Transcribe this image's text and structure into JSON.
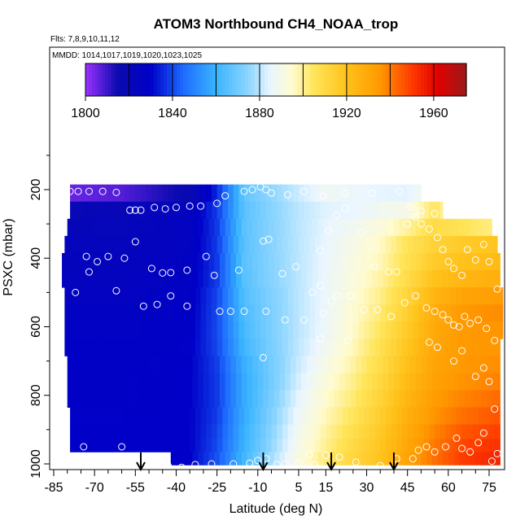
{
  "chart_data": {
    "type": "heatmap",
    "title": "ATOM3 Northbound CH4_NOAA_trop",
    "flights_label": "Flts: 7,8,9,10,11,12",
    "mmdd_label": "MMDD: 1014,1017,1019,1020,1023,1025",
    "xlabel": "Latitude (deg N)",
    "ylabel": "PSXC (mbar)",
    "xlim": [
      -85,
      85
    ],
    "ylim": [
      1010,
      50
    ],
    "x_ticks": [
      -85,
      -70,
      -55,
      -40,
      -25,
      -10,
      5,
      15,
      30,
      45,
      60,
      75
    ],
    "y_ticks": [
      200,
      400,
      600,
      800,
      1000
    ],
    "colorbar": {
      "min": 1800,
      "max": 1975,
      "ticks": [
        1800,
        1840,
        1880,
        1920,
        1960
      ],
      "stops": [
        {
          "value": 1800,
          "color": "#9b30ff"
        },
        {
          "value": 1815,
          "color": "#0a0ab0"
        },
        {
          "value": 1830,
          "color": "#0000c8"
        },
        {
          "value": 1845,
          "color": "#1e6cff"
        },
        {
          "value": 1860,
          "color": "#3ab4ff"
        },
        {
          "value": 1875,
          "color": "#8ed6ff"
        },
        {
          "value": 1885,
          "color": "#eaf6ff"
        },
        {
          "value": 1895,
          "color": "#fffbd0"
        },
        {
          "value": 1905,
          "color": "#ffe55a"
        },
        {
          "value": 1920,
          "color": "#ffc21a"
        },
        {
          "value": 1935,
          "color": "#ff9a00"
        },
        {
          "value": 1950,
          "color": "#ff3a00"
        },
        {
          "value": 1962,
          "color": "#e00000"
        },
        {
          "value": 1975,
          "color": "#9b1a1a"
        }
      ]
    },
    "pressure_bins": [
      {
        "p": 210,
        "lat_min": -79,
        "lat_max": 50
      },
      {
        "p": 260,
        "lat_min": -79,
        "lat_max": 58
      },
      {
        "p": 310,
        "lat_min": -80,
        "lat_max": 76
      },
      {
        "p": 360,
        "lat_min": -81,
        "lat_max": 78
      },
      {
        "p": 410,
        "lat_min": -82,
        "lat_max": 79
      },
      {
        "p": 460,
        "lat_min": -82,
        "lat_max": 79
      },
      {
        "p": 510,
        "lat_min": -81,
        "lat_max": 80
      },
      {
        "p": 560,
        "lat_min": -81,
        "lat_max": 80
      },
      {
        "p": 610,
        "lat_min": -81,
        "lat_max": 80
      },
      {
        "p": 660,
        "lat_min": -81,
        "lat_max": 79
      },
      {
        "p": 710,
        "lat_min": -80,
        "lat_max": 79
      },
      {
        "p": 760,
        "lat_min": -80,
        "lat_max": 79
      },
      {
        "p": 810,
        "lat_min": -80,
        "lat_max": 79
      },
      {
        "p": 860,
        "lat_min": -79,
        "lat_max": 79
      },
      {
        "p": 910,
        "lat_min": -79,
        "lat_max": 79
      },
      {
        "p": 945,
        "lat_min": -79,
        "lat_max": 79
      },
      {
        "p": 985,
        "lat_min": -42,
        "lat_max": 79
      }
    ],
    "ch4_profile": {
      "lat_knots": [
        -85,
        -60,
        -35,
        -25,
        -15,
        -5,
        5,
        15,
        25,
        35,
        45,
        55,
        65,
        80
      ],
      "by_pressure": [
        {
          "p": 200,
          "ch4": [
            1802,
            1805,
            1815,
            1835,
            1868,
            1875,
            1882,
            1888,
            1886,
            1884,
            1883,
            1890,
            1880,
            1870
          ]
        },
        {
          "p": 260,
          "ch4": [
            1818,
            1820,
            1825,
            1838,
            1866,
            1874,
            1880,
            1884,
            1885,
            1888,
            1890,
            1905,
            1890,
            1870
          ]
        },
        {
          "p": 340,
          "ch4": [
            1822,
            1822,
            1826,
            1838,
            1866,
            1874,
            1880,
            1885,
            1890,
            1895,
            1905,
            1912,
            1915,
            1918
          ]
        },
        {
          "p": 440,
          "ch4": [
            1824,
            1824,
            1827,
            1838,
            1866,
            1874,
            1880,
            1886,
            1892,
            1898,
            1908,
            1918,
            1922,
            1925
          ]
        },
        {
          "p": 540,
          "ch4": [
            1826,
            1826,
            1828,
            1840,
            1864,
            1872,
            1880,
            1886,
            1894,
            1902,
            1914,
            1928,
            1935,
            1938
          ]
        },
        {
          "p": 640,
          "ch4": [
            1828,
            1828,
            1829,
            1840,
            1862,
            1872,
            1880,
            1887,
            1896,
            1906,
            1918,
            1930,
            1935,
            1935
          ]
        },
        {
          "p": 740,
          "ch4": [
            1829,
            1829,
            1830,
            1838,
            1858,
            1870,
            1882,
            1892,
            1900,
            1910,
            1922,
            1932,
            1935,
            1938
          ]
        },
        {
          "p": 840,
          "ch4": [
            1829,
            1829,
            1830,
            1838,
            1858,
            1872,
            1886,
            1896,
            1904,
            1914,
            1926,
            1935,
            1940,
            1945
          ]
        },
        {
          "p": 940,
          "ch4": [
            1830,
            1830,
            1830,
            1840,
            1860,
            1875,
            1890,
            1900,
            1910,
            1918,
            1930,
            1940,
            1948,
            1952
          ]
        },
        {
          "p": 1000,
          "ch4": [
            1830,
            1830,
            1830,
            1842,
            1862,
            1878,
            1892,
            1904,
            1912,
            1920,
            1932,
            1942,
            1950,
            1956
          ]
        }
      ]
    },
    "observations": [
      [
        -79,
        205
      ],
      [
        -76,
        205
      ],
      [
        -72,
        205
      ],
      [
        -67,
        205
      ],
      [
        -62,
        208
      ],
      [
        -57,
        260
      ],
      [
        -55,
        260
      ],
      [
        -53,
        260
      ],
      [
        -48,
        252
      ],
      [
        -44,
        256
      ],
      [
        -40,
        252
      ],
      [
        -35,
        248
      ],
      [
        -31,
        248
      ],
      [
        -25,
        240
      ],
      [
        -22,
        218
      ],
      [
        -15,
        205
      ],
      [
        -12,
        200
      ],
      [
        -9,
        192
      ],
      [
        -7,
        200
      ],
      [
        -5,
        210
      ],
      [
        1,
        215
      ],
      [
        7,
        205
      ],
      [
        14,
        218
      ],
      [
        22,
        210
      ],
      [
        32,
        210
      ],
      [
        42,
        205
      ],
      [
        46,
        250
      ],
      [
        50,
        262
      ],
      [
        55,
        270
      ],
      [
        63,
        265
      ],
      [
        -84,
        330
      ],
      [
        -73,
        395
      ],
      [
        -69,
        410
      ],
      [
        -65,
        395
      ],
      [
        -59,
        400
      ],
      [
        -55,
        352
      ],
      [
        -49,
        430
      ],
      [
        -45,
        443
      ],
      [
        -42,
        442
      ],
      [
        -36,
        435
      ],
      [
        -29,
        395
      ],
      [
        -26,
        450
      ],
      [
        -17,
        435
      ],
      [
        -8,
        350
      ],
      [
        -6,
        345
      ],
      [
        -1,
        445
      ],
      [
        4,
        425
      ],
      [
        10,
        500
      ],
      [
        13,
        480
      ],
      [
        13,
        378
      ],
      [
        16,
        320
      ],
      [
        19,
        275
      ],
      [
        22,
        255
      ],
      [
        28,
        325
      ],
      [
        33,
        425
      ],
      [
        38,
        440
      ],
      [
        41,
        440
      ],
      [
        45,
        300
      ],
      [
        48,
        280
      ],
      [
        50,
        300
      ],
      [
        53,
        315
      ],
      [
        56,
        340
      ],
      [
        58,
        375
      ],
      [
        60,
        410
      ],
      [
        62,
        430
      ],
      [
        65,
        450
      ],
      [
        67,
        375
      ],
      [
        70,
        405
      ],
      [
        73,
        360
      ],
      [
        75,
        410
      ],
      [
        78,
        490
      ],
      [
        -77,
        500
      ],
      [
        -72,
        440
      ],
      [
        -62,
        495
      ],
      [
        -52,
        540
      ],
      [
        -47,
        535
      ],
      [
        -42,
        510
      ],
      [
        -36,
        540
      ],
      [
        -24,
        555
      ],
      [
        -20,
        555
      ],
      [
        -15,
        555
      ],
      [
        -7,
        555
      ],
      [
        0,
        580
      ],
      [
        7,
        580
      ],
      [
        14,
        560
      ],
      [
        17,
        525
      ],
      [
        19,
        510
      ],
      [
        24,
        510
      ],
      [
        29,
        550
      ],
      [
        34,
        550
      ],
      [
        39,
        570
      ],
      [
        44,
        530
      ],
      [
        48,
        510
      ],
      [
        52,
        545
      ],
      [
        55,
        555
      ],
      [
        58,
        565
      ],
      [
        60,
        580
      ],
      [
        62,
        595
      ],
      [
        64,
        600
      ],
      [
        66,
        570
      ],
      [
        68,
        590
      ],
      [
        71,
        580
      ],
      [
        74,
        605
      ],
      [
        77,
        640
      ],
      [
        -8,
        690
      ],
      [
        13,
        635
      ],
      [
        23,
        640
      ],
      [
        53,
        645
      ],
      [
        56,
        660
      ],
      [
        62,
        700
      ],
      [
        65,
        670
      ],
      [
        70,
        745
      ],
      [
        73,
        720
      ],
      [
        75,
        760
      ],
      [
        77,
        840
      ],
      [
        -74,
        950
      ],
      [
        -60,
        950
      ],
      [
        -13,
        998
      ],
      [
        -10,
        990
      ],
      [
        -7,
        985
      ],
      [
        0,
        1000
      ],
      [
        5,
        998
      ],
      [
        9,
        972
      ],
      [
        15,
        975
      ],
      [
        20,
        980
      ],
      [
        26,
        995
      ],
      [
        35,
        1005
      ],
      [
        41,
        985
      ],
      [
        47,
        985
      ],
      [
        49,
        960
      ],
      [
        52,
        950
      ],
      [
        55,
        965
      ],
      [
        59,
        950
      ],
      [
        63,
        925
      ],
      [
        65,
        955
      ],
      [
        68,
        965
      ],
      [
        71,
        938
      ],
      [
        73,
        910
      ],
      [
        76,
        992
      ],
      [
        78,
        970
      ],
      [
        -43,
        1005
      ],
      [
        -38,
        1010
      ],
      [
        -33,
        1002
      ],
      [
        -27,
        1000
      ],
      [
        -19,
        1000
      ],
      [
        -3,
        1002
      ],
      [
        11,
        1003
      ]
    ],
    "flight_markers_lat": [
      -53,
      -8,
      17,
      40
    ]
  }
}
